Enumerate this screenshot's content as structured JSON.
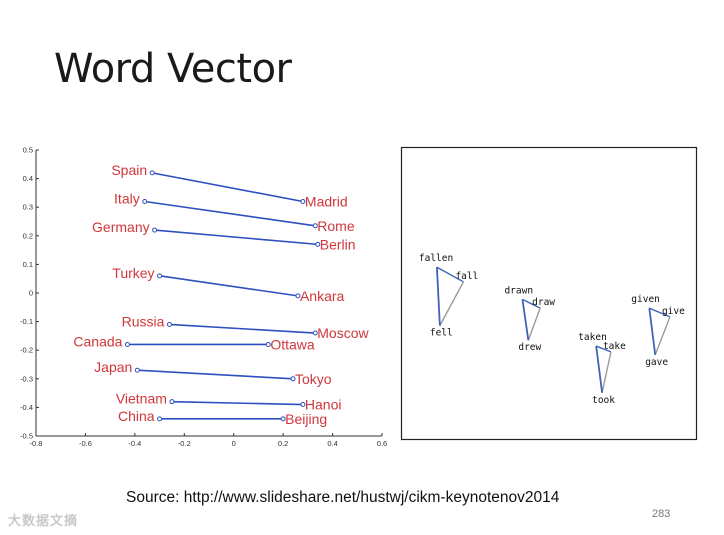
{
  "slide": {
    "title": "Word Vector",
    "source": "Source: http://www.slideshare.net/hustwj/cikm-keynotenov2014",
    "page_number": "283",
    "watermark": "大数据文摘"
  },
  "colors": {
    "line": "#2d4fbf",
    "country_label": "#d0373b",
    "tri_blue": "#3d63b8",
    "tri_gray": "#9a9a9a"
  },
  "chart_data": [
    {
      "type": "scatter",
      "title": "",
      "xlabel": "",
      "ylabel": "",
      "xlim": [
        -0.8,
        0.6
      ],
      "ylim": [
        -0.5,
        0.5
      ],
      "xticks": [
        -0.8,
        -0.6,
        -0.4,
        -0.2,
        0,
        0.2,
        0.4,
        0.6
      ],
      "yticks": [
        0.5,
        0.4,
        0.3,
        0.2,
        0.1,
        0,
        -0.1,
        -0.2,
        -0.3,
        -0.4,
        -0.5
      ],
      "grid": false,
      "pairs": [
        {
          "country": "Spain",
          "capital": "Madrid",
          "from": [
            -0.33,
            0.42
          ],
          "to": [
            0.28,
            0.32
          ]
        },
        {
          "country": "Italy",
          "capital": "Rome",
          "from": [
            -0.36,
            0.32
          ],
          "to": [
            0.33,
            0.235
          ]
        },
        {
          "country": "Germany",
          "capital": "Berlin",
          "from": [
            -0.32,
            0.22
          ],
          "to": [
            0.34,
            0.17
          ]
        },
        {
          "country": "Turkey",
          "capital": "Ankara",
          "from": [
            -0.3,
            0.06
          ],
          "to": [
            0.26,
            -0.01
          ]
        },
        {
          "country": "Russia",
          "capital": "Moscow",
          "from": [
            -0.26,
            -0.11
          ],
          "to": [
            0.33,
            -0.14
          ]
        },
        {
          "country": "Canada",
          "capital": "Ottawa",
          "from": [
            -0.43,
            -0.18
          ],
          "to": [
            0.14,
            -0.18
          ]
        },
        {
          "country": "Japan",
          "capital": "Tokyo",
          "from": [
            -0.39,
            -0.27
          ],
          "to": [
            0.24,
            -0.3
          ]
        },
        {
          "country": "Vietnam",
          "capital": "Hanoi",
          "from": [
            -0.25,
            -0.38
          ],
          "to": [
            0.28,
            -0.39
          ]
        },
        {
          "country": "China",
          "capital": "Beijing",
          "from": [
            -0.3,
            -0.44
          ],
          "to": [
            0.2,
            -0.44
          ]
        }
      ]
    },
    {
      "type": "diagram",
      "title": "",
      "verb_triangles": [
        {
          "words": [
            "fallen",
            "fall",
            "fell"
          ],
          "points": [
            [
              0.12,
              0.41
            ],
            [
              0.21,
              0.46
            ],
            [
              0.13,
              0.61
            ]
          ]
        },
        {
          "words": [
            "drawn",
            "draw",
            "drew"
          ],
          "points": [
            [
              0.41,
              0.52
            ],
            [
              0.47,
              0.55
            ],
            [
              0.43,
              0.66
            ]
          ]
        },
        {
          "words": [
            "taken",
            "take",
            "took"
          ],
          "points": [
            [
              0.66,
              0.68
            ],
            [
              0.71,
              0.7
            ],
            [
              0.68,
              0.84
            ]
          ]
        },
        {
          "words": [
            "given",
            "give",
            "gave"
          ],
          "points": [
            [
              0.84,
              0.55
            ],
            [
              0.91,
              0.58
            ],
            [
              0.86,
              0.71
            ]
          ]
        }
      ]
    }
  ]
}
